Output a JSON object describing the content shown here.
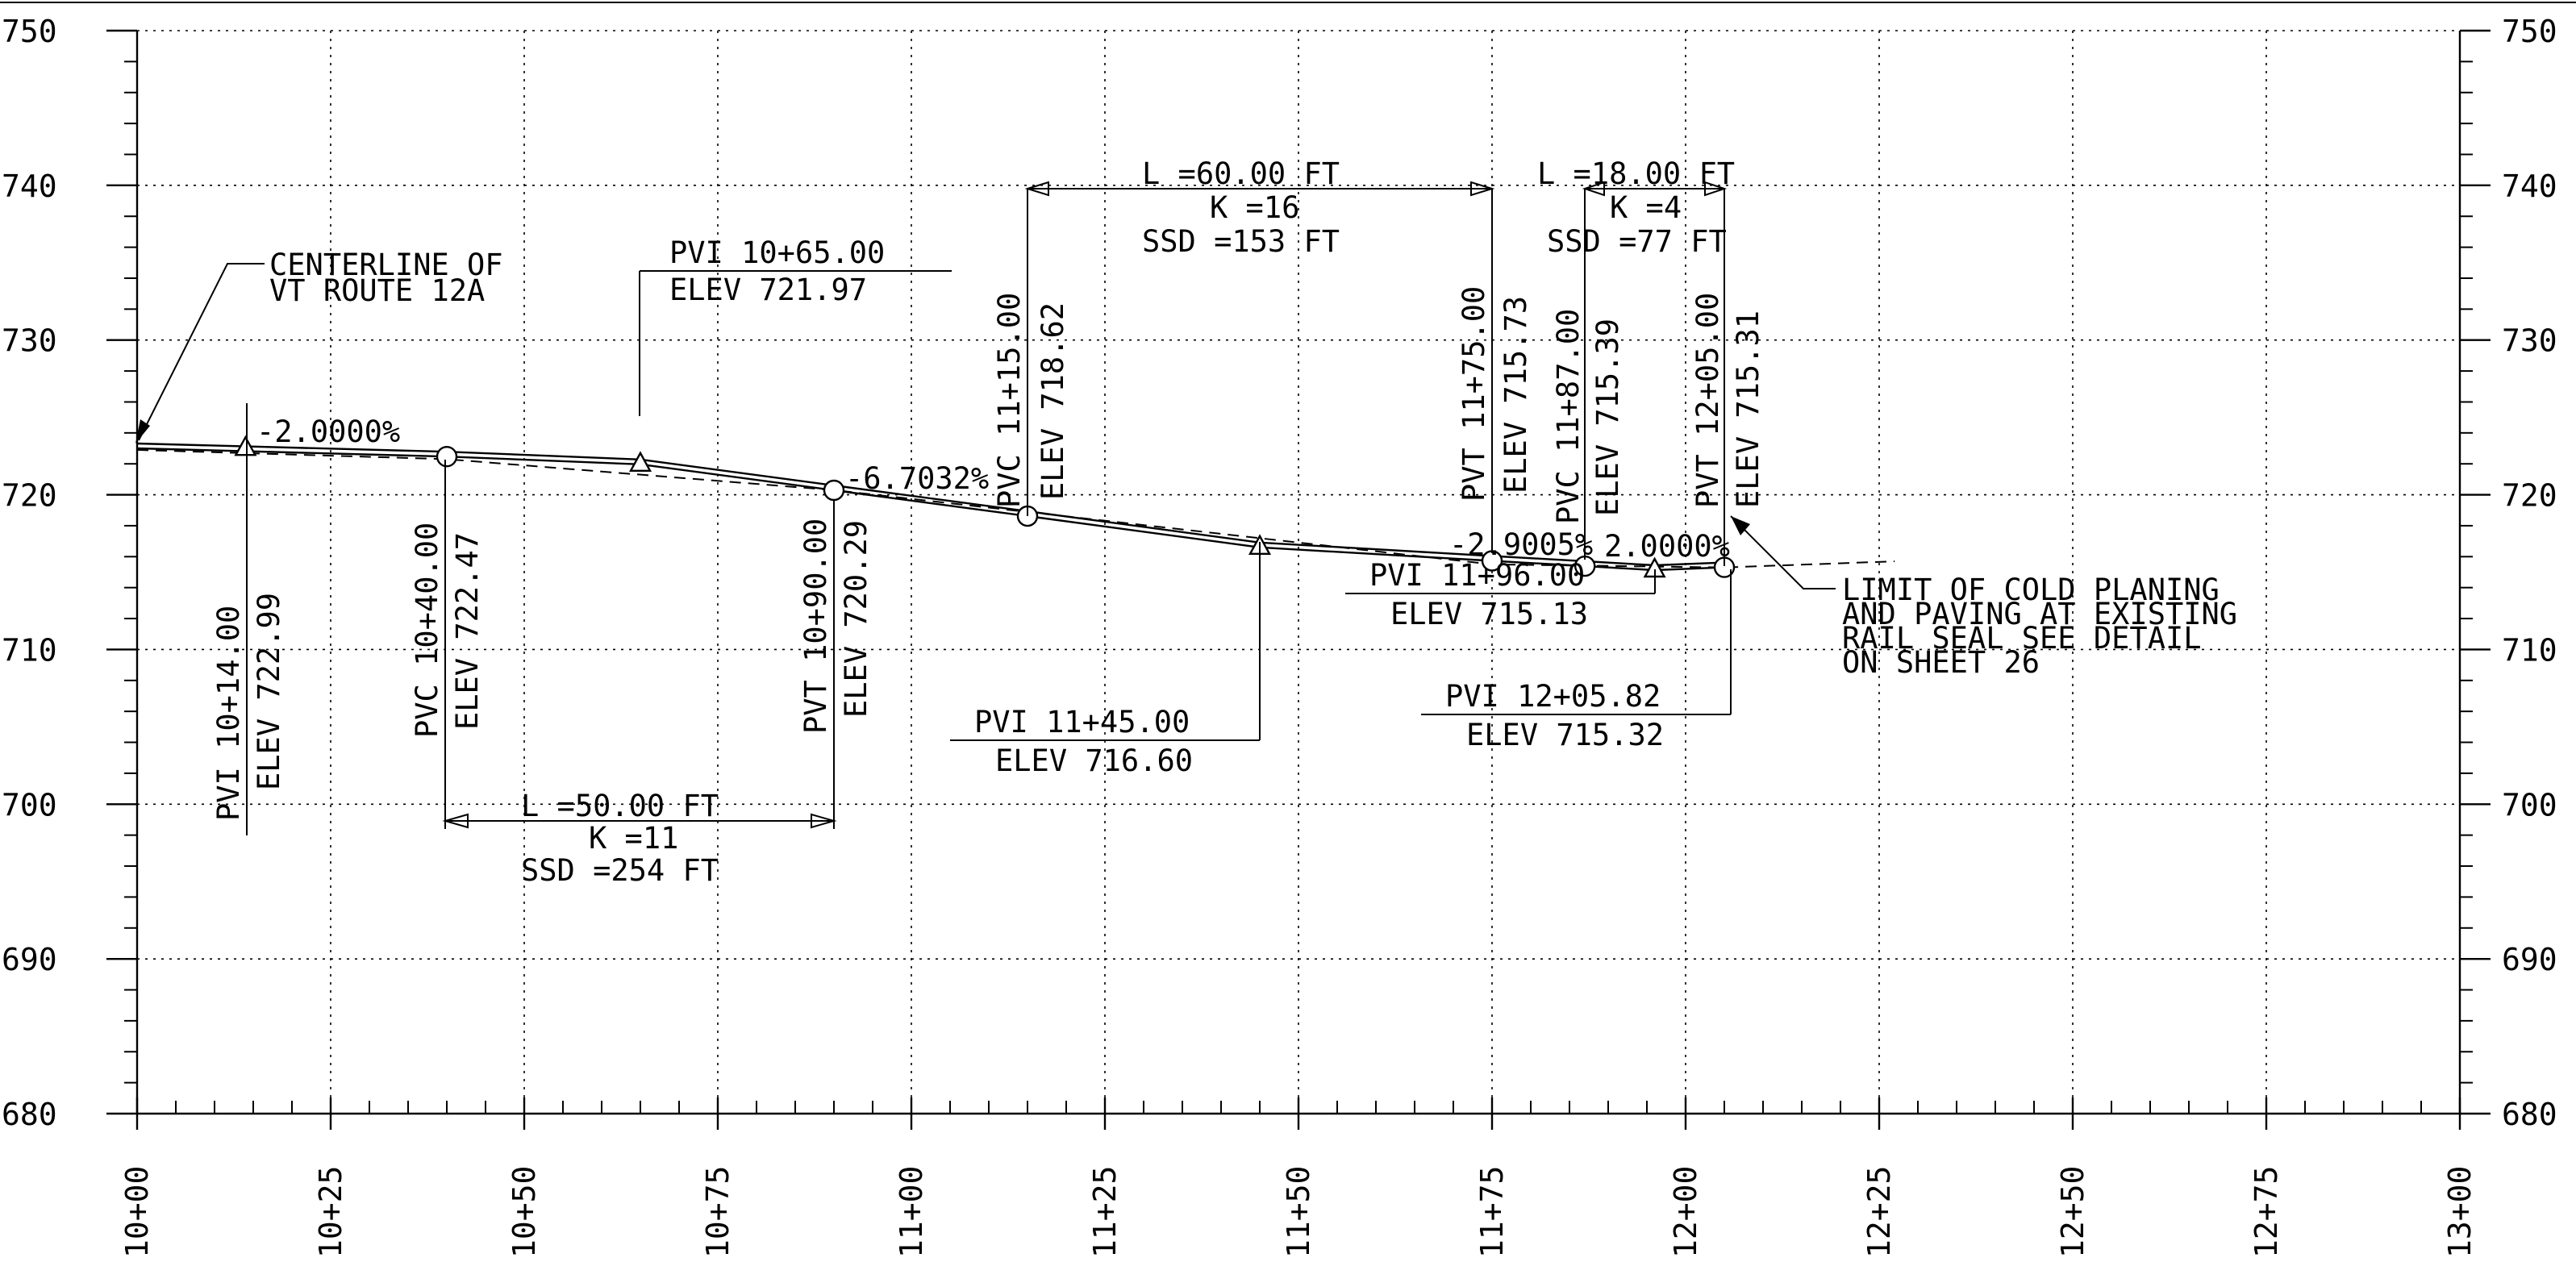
{
  "axes": {
    "y_ticks": [
      "750",
      "740",
      "730",
      "720",
      "710",
      "700",
      "690",
      "680"
    ],
    "x_ticks": [
      "10+00",
      "10+25",
      "10+50",
      "10+75",
      "11+00",
      "11+25",
      "11+50",
      "11+75",
      "12+00",
      "12+25",
      "12+50",
      "12+75",
      "13+00"
    ]
  },
  "chart_data": {
    "type": "line",
    "x_unit": "station (ft)",
    "y_unit": "elevation (ft)",
    "ylim": [
      680,
      750
    ],
    "xlim": [
      1000,
      1300
    ],
    "grid": true,
    "series": [
      {
        "points": [
          [
            1000,
            723.0
          ],
          [
            1040,
            722.47
          ],
          [
            1065,
            721.97
          ],
          [
            1090,
            720.29
          ],
          [
            1115,
            718.62
          ],
          [
            1145,
            716.6
          ],
          [
            1175,
            715.73
          ],
          [
            1187,
            715.39
          ],
          [
            1196,
            715.13
          ],
          [
            1205,
            715.31
          ],
          [
            1205.82,
            715.32
          ]
        ]
      }
    ],
    "existing_ground": [
      [
        1000,
        722.9
      ],
      [
        1040,
        722.3
      ],
      [
        1090,
        720.3
      ],
      [
        1175,
        715.5
      ],
      [
        1205,
        715.3
      ],
      [
        1227,
        715.7
      ]
    ]
  },
  "annotations": {
    "centerline": [
      "CENTERLINE OF",
      "VT ROUTE 12A"
    ],
    "grade_1": "-2.0000%",
    "grade_2": "-6.7032%",
    "grade_3": "-2.9005%",
    "grade_4": "2.0000%",
    "pvi_1014": [
      "PVI 10+14.00",
      "ELEV 722.99"
    ],
    "pvc_1040": [
      "PVC 10+40.00",
      "ELEV 722.47"
    ],
    "pvi_1065": [
      "PVI 10+65.00",
      "ELEV 721.97"
    ],
    "pvt_1090": [
      "PVT 10+90.00",
      "ELEV 720.29"
    ],
    "curve_1": [
      "L =50.00 FT",
      "K =11",
      "SSD =254 FT"
    ],
    "pvc_1115": [
      "PVC 11+15.00",
      "ELEV 718.62"
    ],
    "pvi_1145": [
      "PVI 11+45.00",
      "ELEV 716.60"
    ],
    "curve_2": [
      "L =60.00 FT",
      "K =16",
      "SSD =153 FT"
    ],
    "pvt_1175": [
      "PVT 11+75.00",
      "ELEV 715.73"
    ],
    "pvc_1187": [
      "PVC 11+87.00",
      "ELEV 715.39"
    ],
    "pvi_1196": [
      "PVI 11+96.00",
      "ELEV 715.13"
    ],
    "pvt_1205": [
      "PVT 12+05.00",
      "ELEV 715.31"
    ],
    "curve_3": [
      "L =18.00 FT",
      "K =4",
      "SSD =77 FT"
    ],
    "pvi_1205": [
      "PVI 12+05.82",
      "ELEV 715.32"
    ],
    "limit_note": [
      "LIMIT OF COLD PLANING",
      "AND PAVING AT EXISTING",
      "RAIL SEAL SEE DETAIL",
      "ON SHEET 26"
    ]
  }
}
